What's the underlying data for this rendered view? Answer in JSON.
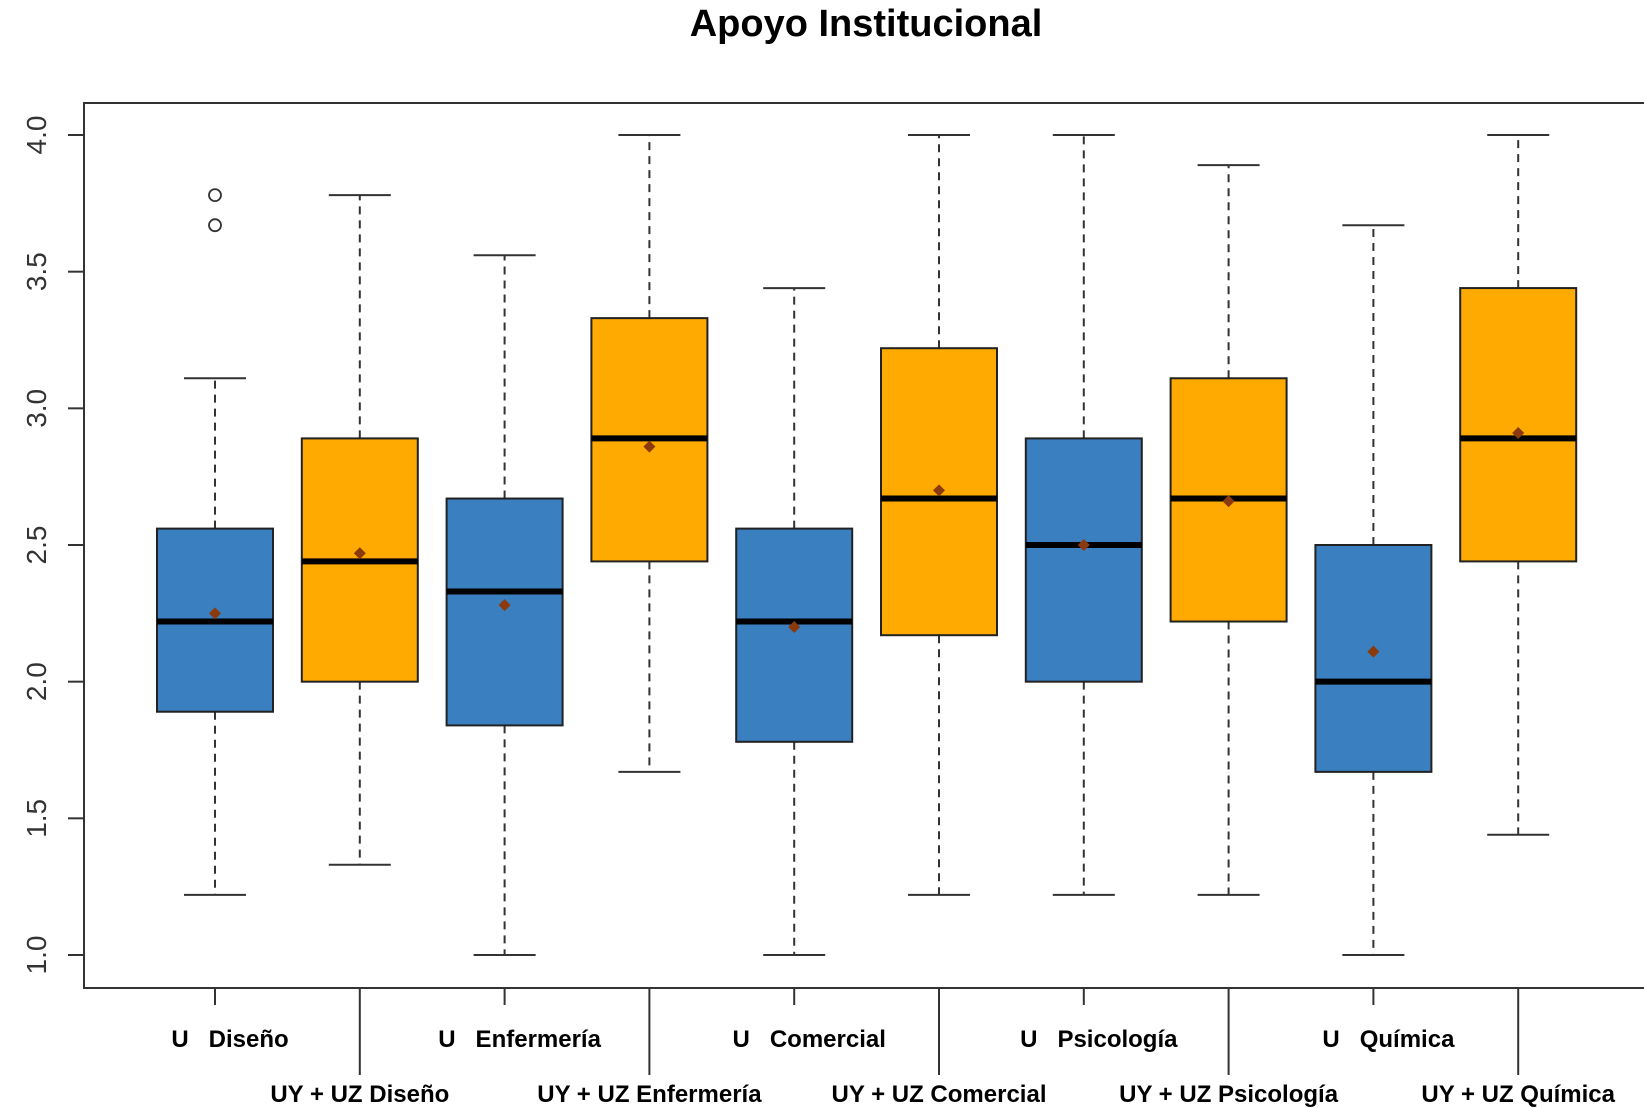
{
  "chart_data": {
    "type": "box",
    "title": "Apoyo Institucional",
    "xlabel": "",
    "ylabel": "",
    "ylim": [
      0.93,
      4.13
    ],
    "yticks": [
      "1.0",
      "1.5",
      "2.0",
      "2.5",
      "3.0",
      "3.5",
      "4.0"
    ],
    "grid": false,
    "colors": {
      "U": "#3A7FC0",
      "UYUZ": "#FFAA00",
      "mean": "#8B3A0E",
      "median": "#000000"
    },
    "categories": [
      "U   Diseño",
      "UY + UZ Diseño",
      "U   Enfermería",
      "UY + UZ Enfermería",
      "U   Comercial",
      "UY + UZ Comercial",
      "U   Psicología",
      "UY + UZ Psicología",
      "U   Química",
      "UY + UZ Química"
    ],
    "boxes": [
      {
        "group": "U",
        "whisker_low": 1.22,
        "q1": 1.89,
        "median": 2.22,
        "q3": 2.56,
        "whisker_high": 3.11,
        "mean": 2.25,
        "outliers": [
          3.67,
          3.78
        ]
      },
      {
        "group": "UYUZ",
        "whisker_low": 1.33,
        "q1": 2.0,
        "median": 2.44,
        "q3": 2.89,
        "whisker_high": 3.78,
        "mean": 2.47,
        "outliers": []
      },
      {
        "group": "U",
        "whisker_low": 1.0,
        "q1": 1.84,
        "median": 2.33,
        "q3": 2.67,
        "whisker_high": 3.56,
        "mean": 2.28,
        "outliers": []
      },
      {
        "group": "UYUZ",
        "whisker_low": 1.67,
        "q1": 2.44,
        "median": 2.89,
        "q3": 3.33,
        "whisker_high": 4.0,
        "mean": 2.86,
        "outliers": []
      },
      {
        "group": "U",
        "whisker_low": 1.0,
        "q1": 1.78,
        "median": 2.22,
        "q3": 2.56,
        "whisker_high": 3.44,
        "mean": 2.2,
        "outliers": []
      },
      {
        "group": "UYUZ",
        "whisker_low": 1.22,
        "q1": 2.17,
        "median": 2.67,
        "q3": 3.22,
        "whisker_high": 4.0,
        "mean": 2.7,
        "outliers": []
      },
      {
        "group": "U",
        "whisker_low": 1.22,
        "q1": 2.0,
        "median": 2.5,
        "q3": 2.89,
        "whisker_high": 4.0,
        "mean": 2.5,
        "outliers": []
      },
      {
        "group": "UYUZ",
        "whisker_low": 1.22,
        "q1": 2.22,
        "median": 2.67,
        "q3": 3.11,
        "whisker_high": 3.89,
        "mean": 2.66,
        "outliers": []
      },
      {
        "group": "U",
        "whisker_low": 1.0,
        "q1": 1.67,
        "median": 2.0,
        "q3": 2.5,
        "whisker_high": 3.67,
        "mean": 2.11,
        "outliers": []
      },
      {
        "group": "UYUZ",
        "whisker_low": 1.44,
        "q1": 2.44,
        "median": 2.89,
        "q3": 3.44,
        "whisker_high": 4.0,
        "mean": 2.91,
        "outliers": []
      }
    ]
  }
}
